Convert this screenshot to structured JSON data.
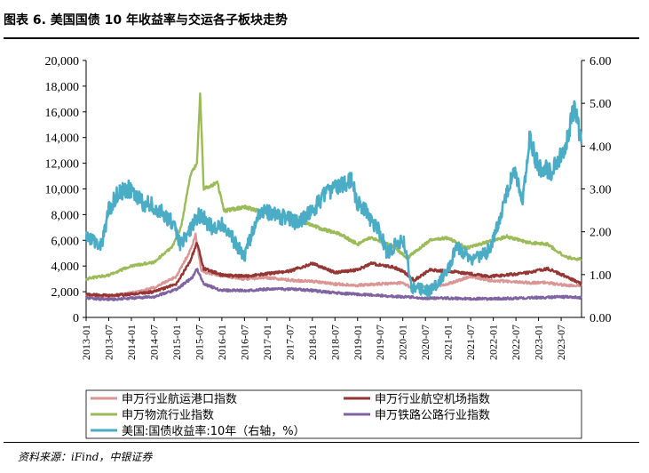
{
  "header": {
    "title": "图表 6. 美国国债 10 年收益率与交运各子板块走势"
  },
  "footer": {
    "source": "资料来源：iFind，中银证券"
  },
  "chart_data": {
    "type": "line",
    "title": "图表 6. 美国国债 10 年收益率与交运各子板块走势",
    "y_left": {
      "range": [
        0,
        20000
      ],
      "ticks": [
        "0",
        "2,000",
        "4,000",
        "6,000",
        "8,000",
        "10,000",
        "12,000",
        "14,000",
        "16,000",
        "18,000",
        "20,000"
      ]
    },
    "y_right": {
      "range": [
        0,
        6
      ],
      "ticks": [
        "0.00",
        "1.00",
        "2.00",
        "3.00",
        "4.00",
        "5.00",
        "6.00"
      ]
    },
    "x_ticks": [
      "2013-01",
      "2013-07",
      "2014-01",
      "2014-07",
      "2015-01",
      "2015-07",
      "2016-01",
      "2016-07",
      "2017-01",
      "2017-07",
      "2018-01",
      "2018-07",
      "2019-01",
      "2019-07",
      "2020-01",
      "2020-07",
      "2021-01",
      "2021-07",
      "2022-01",
      "2022-07",
      "2023-01",
      "2023-07"
    ],
    "x_range": [
      2013.0,
      2023.95
    ],
    "series": [
      {
        "name": "申万行业航运港口指数",
        "axis": "left",
        "color": "#d99694",
        "points": [
          [
            2013.0,
            1700
          ],
          [
            2013.5,
            1600
          ],
          [
            2014.0,
            1900
          ],
          [
            2014.5,
            2300
          ],
          [
            2015.0,
            3200
          ],
          [
            2015.3,
            5200
          ],
          [
            2015.42,
            6400
          ],
          [
            2015.55,
            3600
          ],
          [
            2015.9,
            3300
          ],
          [
            2016.5,
            3000
          ],
          [
            2017.0,
            3100
          ],
          [
            2017.5,
            2900
          ],
          [
            2018.0,
            2800
          ],
          [
            2018.5,
            2600
          ],
          [
            2019.0,
            2500
          ],
          [
            2019.5,
            2600
          ],
          [
            2020.0,
            2700
          ],
          [
            2020.2,
            2300
          ],
          [
            2020.7,
            2400
          ],
          [
            2021.0,
            2600
          ],
          [
            2021.5,
            3200
          ],
          [
            2021.9,
            2900
          ],
          [
            2022.3,
            2800
          ],
          [
            2022.8,
            2700
          ],
          [
            2023.2,
            2700
          ],
          [
            2023.6,
            2500
          ],
          [
            2023.95,
            2450
          ]
        ]
      },
      {
        "name": "申万行业航空机场指数",
        "axis": "left",
        "color": "#943634",
        "points": [
          [
            2013.0,
            1800
          ],
          [
            2013.5,
            1700
          ],
          [
            2014.0,
            1800
          ],
          [
            2014.5,
            2000
          ],
          [
            2015.0,
            2600
          ],
          [
            2015.3,
            4400
          ],
          [
            2015.45,
            5800
          ],
          [
            2015.6,
            3800
          ],
          [
            2016.0,
            3300
          ],
          [
            2016.5,
            3200
          ],
          [
            2017.0,
            3400
          ],
          [
            2017.5,
            3600
          ],
          [
            2018.0,
            4200
          ],
          [
            2018.5,
            3500
          ],
          [
            2019.0,
            3700
          ],
          [
            2019.3,
            4200
          ],
          [
            2019.8,
            3900
          ],
          [
            2020.0,
            3600
          ],
          [
            2020.25,
            2900
          ],
          [
            2020.6,
            3700
          ],
          [
            2021.0,
            3600
          ],
          [
            2021.5,
            3400
          ],
          [
            2021.9,
            3200
          ],
          [
            2022.3,
            3300
          ],
          [
            2022.8,
            3500
          ],
          [
            2023.2,
            3800
          ],
          [
            2023.6,
            3200
          ],
          [
            2023.95,
            2600
          ]
        ]
      },
      {
        "name": "申万物流行业指数",
        "axis": "left",
        "color": "#9bbb59",
        "points": [
          [
            2013.0,
            3000
          ],
          [
            2013.5,
            3300
          ],
          [
            2014.0,
            4000
          ],
          [
            2014.5,
            4300
          ],
          [
            2014.9,
            5500
          ],
          [
            2015.1,
            7000
          ],
          [
            2015.3,
            11000
          ],
          [
            2015.45,
            12000
          ],
          [
            2015.52,
            17300
          ],
          [
            2015.6,
            10000
          ],
          [
            2015.9,
            10500
          ],
          [
            2016.05,
            8300
          ],
          [
            2016.5,
            8600
          ],
          [
            2016.9,
            8200
          ],
          [
            2017.1,
            8300
          ],
          [
            2017.5,
            7700
          ],
          [
            2017.9,
            7300
          ],
          [
            2018.2,
            6900
          ],
          [
            2018.6,
            6500
          ],
          [
            2019.0,
            5700
          ],
          [
            2019.3,
            6200
          ],
          [
            2019.8,
            5500
          ],
          [
            2020.1,
            4600
          ],
          [
            2020.3,
            5200
          ],
          [
            2020.6,
            6000
          ],
          [
            2021.0,
            6200
          ],
          [
            2021.4,
            5400
          ],
          [
            2021.9,
            5900
          ],
          [
            2022.3,
            6300
          ],
          [
            2022.8,
            5800
          ],
          [
            2023.2,
            5700
          ],
          [
            2023.6,
            4700
          ],
          [
            2023.95,
            4500
          ]
        ]
      },
      {
        "name": "申万铁路公路行业指数",
        "axis": "left",
        "color": "#8064a2",
        "points": [
          [
            2013.0,
            1500
          ],
          [
            2013.5,
            1400
          ],
          [
            2014.0,
            1500
          ],
          [
            2014.5,
            1600
          ],
          [
            2015.0,
            2200
          ],
          [
            2015.35,
            3100
          ],
          [
            2015.45,
            3800
          ],
          [
            2015.6,
            2600
          ],
          [
            2016.0,
            2100
          ],
          [
            2016.5,
            2100
          ],
          [
            2017.0,
            2200
          ],
          [
            2017.5,
            2200
          ],
          [
            2018.0,
            2100
          ],
          [
            2018.5,
            1900
          ],
          [
            2019.0,
            1800
          ],
          [
            2019.5,
            1700
          ],
          [
            2020.0,
            1600
          ],
          [
            2020.5,
            1500
          ],
          [
            2021.0,
            1500
          ],
          [
            2021.5,
            1450
          ],
          [
            2022.0,
            1450
          ],
          [
            2022.5,
            1500
          ],
          [
            2023.0,
            1550
          ],
          [
            2023.5,
            1600
          ],
          [
            2023.95,
            1550
          ]
        ]
      },
      {
        "name": "美国:国债收益率:10年（右轴，%）",
        "axis": "right",
        "color": "#4bacc6",
        "points": [
          [
            2013.0,
            1.86
          ],
          [
            2013.35,
            1.7
          ],
          [
            2013.5,
            2.5
          ],
          [
            2013.7,
            2.9
          ],
          [
            2013.95,
            3.0
          ],
          [
            2014.2,
            2.7
          ],
          [
            2014.5,
            2.6
          ],
          [
            2014.9,
            2.2
          ],
          [
            2015.1,
            1.7
          ],
          [
            2015.5,
            2.4
          ],
          [
            2015.8,
            2.1
          ],
          [
            2016.0,
            2.2
          ],
          [
            2016.5,
            1.45
          ],
          [
            2016.85,
            2.5
          ],
          [
            2017.2,
            2.4
          ],
          [
            2017.7,
            2.2
          ],
          [
            2018.0,
            2.5
          ],
          [
            2018.3,
            2.9
          ],
          [
            2018.85,
            3.2
          ],
          [
            2019.0,
            2.7
          ],
          [
            2019.5,
            2.0
          ],
          [
            2019.65,
            1.5
          ],
          [
            2020.0,
            1.85
          ],
          [
            2020.2,
            0.7
          ],
          [
            2020.6,
            0.6
          ],
          [
            2021.0,
            1.1
          ],
          [
            2021.2,
            1.7
          ],
          [
            2021.5,
            1.3
          ],
          [
            2021.85,
            1.5
          ],
          [
            2022.0,
            1.8
          ],
          [
            2022.3,
            2.9
          ],
          [
            2022.45,
            3.4
          ],
          [
            2022.65,
            2.7
          ],
          [
            2022.8,
            4.2
          ],
          [
            2023.0,
            3.5
          ],
          [
            2023.3,
            3.4
          ],
          [
            2023.6,
            4.0
          ],
          [
            2023.8,
            4.99
          ],
          [
            2023.95,
            4.05
          ]
        ]
      }
    ],
    "legend_position": "bottom"
  }
}
